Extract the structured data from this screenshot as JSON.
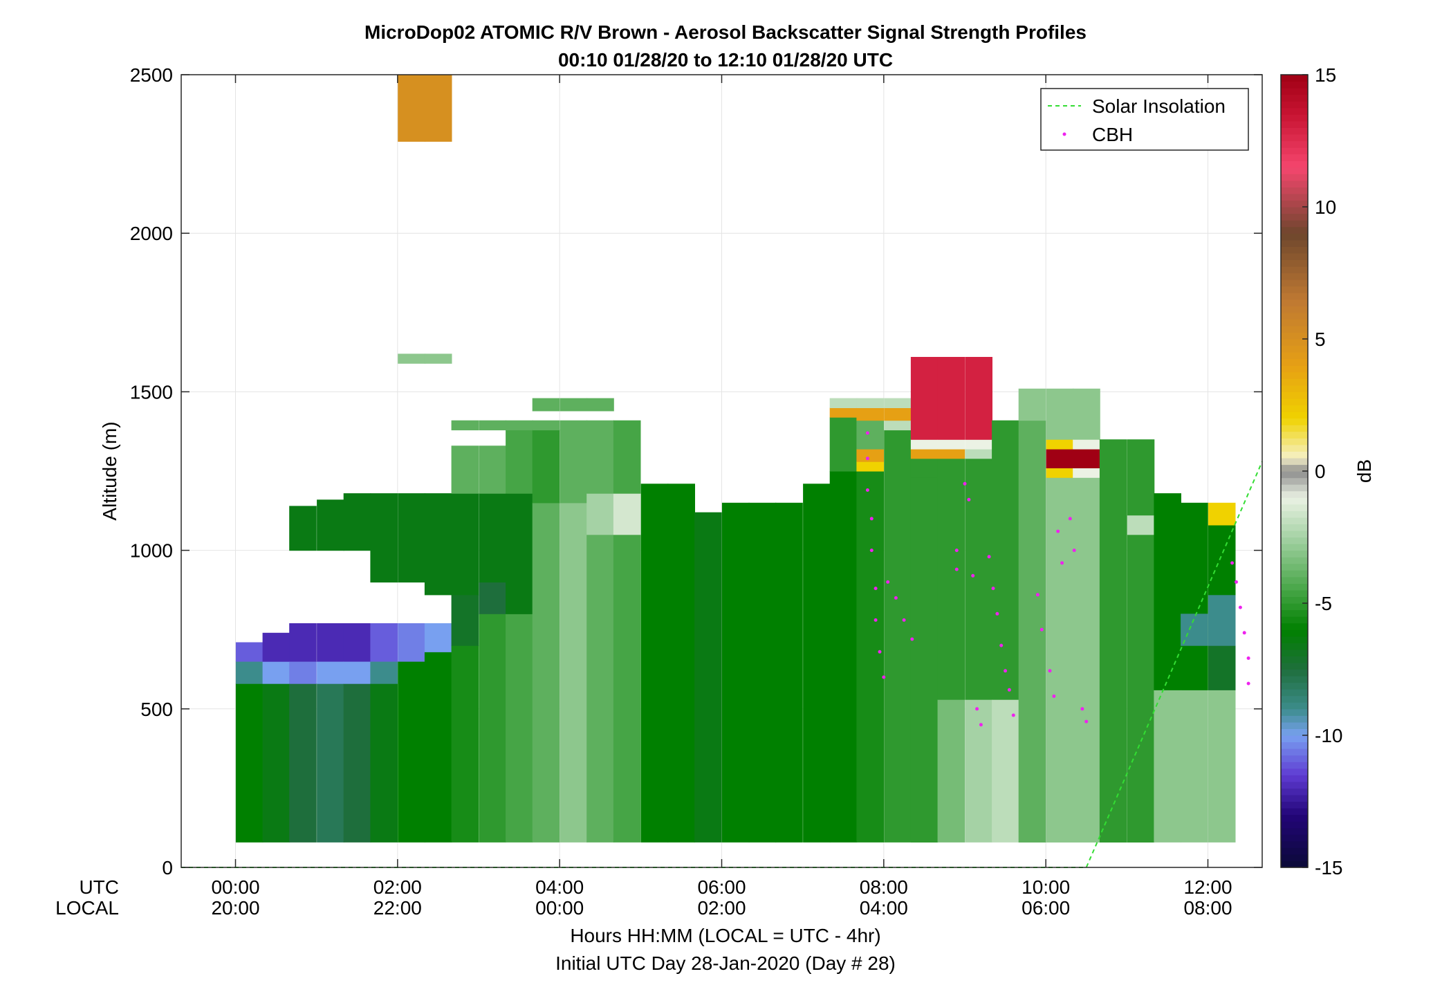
{
  "chart_data": {
    "type": "heatmap",
    "title": "MicroDop02 ATOMIC R/V Brown - Aerosol Backscatter Signal Strength Profiles",
    "subtitle": "00:10 01/28/20 to 12:10 01/28/20  UTC",
    "ylabel": "Altitude (m)",
    "xlabel": "Hours HH:MM  (LOCAL = UTC - 4hr)",
    "xlabel2": "Initial UTC Day 28-Jan-2020 (Day # 28)",
    "x_row_labels": [
      "UTC",
      "LOCAL"
    ],
    "xlim": [
      -0.67,
      12.67
    ],
    "ylim": [
      0,
      2500
    ],
    "grid": true,
    "x_ticks": [
      {
        "utc": "00:00",
        "local": "20:00"
      },
      {
        "utc": "02:00",
        "local": "22:00"
      },
      {
        "utc": "04:00",
        "local": "00:00"
      },
      {
        "utc": "06:00",
        "local": "02:00"
      },
      {
        "utc": "08:00",
        "local": "04:00"
      },
      {
        "utc": "10:00",
        "local": "06:00"
      },
      {
        "utc": "12:00",
        "local": "08:00"
      }
    ],
    "y_ticks": [
      "0",
      "500",
      "1000",
      "1500",
      "2000",
      "2500"
    ],
    "colorbar": {
      "label": "dB",
      "range": [
        -15,
        15
      ],
      "ticks": [
        "-15",
        "-10",
        "-5",
        "0",
        "5",
        "10",
        "15"
      ]
    },
    "legend": {
      "position": "top-right",
      "entries": [
        "Solar Insolation",
        "CBH"
      ]
    },
    "colors": {
      "solar": "#33dd33",
      "cbh": "#ee22ee",
      "grid": "#e4e4e4"
    },
    "solar_insolation": {
      "x": [
        -0.67,
        10.5,
        12.67
      ],
      "y": [
        0,
        0,
        1280
      ]
    },
    "time_step_hr": 0.333,
    "columns": [
      {
        "t": 0.17,
        "segments": [
          [
            80,
            580,
            -6
          ],
          [
            580,
            650,
            -9
          ],
          [
            650,
            710,
            -11
          ]
        ]
      },
      {
        "t": 0.5,
        "segments": [
          [
            80,
            580,
            -6.5
          ],
          [
            580,
            650,
            -10
          ],
          [
            650,
            740,
            -12
          ]
        ]
      },
      {
        "t": 0.83,
        "segments": [
          [
            80,
            580,
            -7.5
          ],
          [
            580,
            650,
            -10.5
          ],
          [
            650,
            770,
            -12
          ],
          [
            1000,
            1140,
            -6.5
          ]
        ]
      },
      {
        "t": 1.17,
        "segments": [
          [
            80,
            580,
            -8
          ],
          [
            580,
            650,
            -10
          ],
          [
            650,
            770,
            -12
          ],
          [
            1000,
            1160,
            -6.5
          ]
        ]
      },
      {
        "t": 1.5,
        "segments": [
          [
            80,
            580,
            -7.5
          ],
          [
            580,
            650,
            -10
          ],
          [
            650,
            770,
            -12
          ],
          [
            1000,
            1180,
            -6.5
          ]
        ]
      },
      {
        "t": 1.83,
        "segments": [
          [
            80,
            580,
            -6.5
          ],
          [
            580,
            650,
            -9
          ],
          [
            650,
            770,
            -11
          ],
          [
            900,
            1180,
            -6.5
          ]
        ]
      },
      {
        "t": 2.17,
        "segments": [
          [
            80,
            650,
            -6
          ],
          [
            650,
            770,
            -10.5
          ],
          [
            900,
            1180,
            -6.5
          ],
          [
            1590,
            1620,
            -3
          ],
          [
            2290,
            2500,
            5
          ]
        ]
      },
      {
        "t": 2.5,
        "segments": [
          [
            80,
            680,
            -6
          ],
          [
            680,
            770,
            -10
          ],
          [
            860,
            1180,
            -6.5
          ],
          [
            1590,
            1620,
            -3
          ],
          [
            2290,
            2500,
            5
          ]
        ]
      },
      {
        "t": 2.83,
        "segments": [
          [
            80,
            700,
            -5.5
          ],
          [
            700,
            860,
            -7
          ],
          [
            860,
            1180,
            -6.5
          ],
          [
            1180,
            1330,
            -4
          ],
          [
            1380,
            1410,
            -4
          ]
        ]
      },
      {
        "t": 3.17,
        "segments": [
          [
            80,
            800,
            -5
          ],
          [
            800,
            900,
            -7.5
          ],
          [
            900,
            1180,
            -6.5
          ],
          [
            1180,
            1330,
            -4
          ],
          [
            1380,
            1410,
            -4
          ]
        ]
      },
      {
        "t": 3.5,
        "segments": [
          [
            80,
            800,
            -4.5
          ],
          [
            800,
            1180,
            -6.5
          ],
          [
            1180,
            1380,
            -4.5
          ],
          [
            1380,
            1410,
            -4
          ]
        ]
      },
      {
        "t": 3.83,
        "segments": [
          [
            80,
            1150,
            -4
          ],
          [
            1150,
            1380,
            -5
          ],
          [
            1380,
            1410,
            -4
          ],
          [
            1440,
            1480,
            -4
          ]
        ]
      },
      {
        "t": 4.17,
        "segments": [
          [
            80,
            1150,
            -3
          ],
          [
            1150,
            1380,
            -4
          ],
          [
            1380,
            1410,
            -4
          ],
          [
            1440,
            1480,
            -4
          ]
        ]
      },
      {
        "t": 4.5,
        "segments": [
          [
            80,
            1050,
            -4
          ],
          [
            1050,
            1180,
            -2.5
          ],
          [
            1180,
            1410,
            -4
          ],
          [
            1440,
            1480,
            -4
          ]
        ]
      },
      {
        "t": 4.83,
        "segments": [
          [
            80,
            1050,
            -4.5
          ],
          [
            1050,
            1180,
            -1.5
          ],
          [
            1180,
            1410,
            -4.5
          ]
        ]
      },
      {
        "t": 5.17,
        "segments": [
          [
            80,
            1210,
            -6
          ]
        ]
      },
      {
        "t": 5.5,
        "segments": [
          [
            80,
            1210,
            -6
          ]
        ]
      },
      {
        "t": 5.83,
        "segments": [
          [
            80,
            1120,
            -6.5
          ]
        ]
      },
      {
        "t": 6.17,
        "segments": [
          [
            80,
            1150,
            -6
          ]
        ]
      },
      {
        "t": 6.5,
        "segments": [
          [
            80,
            1150,
            -6
          ]
        ]
      },
      {
        "t": 6.83,
        "segments": [
          [
            80,
            1150,
            -6
          ]
        ]
      },
      {
        "t": 7.17,
        "segments": [
          [
            80,
            1210,
            -6
          ]
        ]
      },
      {
        "t": 7.5,
        "segments": [
          [
            80,
            1250,
            -6
          ],
          [
            1250,
            1420,
            -5
          ],
          [
            1420,
            1450,
            4
          ],
          [
            1450,
            1480,
            -2
          ]
        ]
      },
      {
        "t": 7.83,
        "segments": [
          [
            80,
            1250,
            -5.5
          ],
          [
            1250,
            1280,
            2
          ],
          [
            1280,
            1320,
            4
          ],
          [
            1320,
            1410,
            -4
          ],
          [
            1410,
            1450,
            4
          ],
          [
            1450,
            1480,
            -2
          ]
        ]
      },
      {
        "t": 8.17,
        "segments": [
          [
            80,
            1380,
            -5
          ],
          [
            1380,
            1410,
            -2
          ],
          [
            1410,
            1450,
            4
          ],
          [
            1450,
            1480,
            -2
          ]
        ]
      },
      {
        "t": 8.5,
        "segments": [
          [
            80,
            1230,
            -5
          ],
          [
            1230,
            1290,
            -5
          ],
          [
            1290,
            1320,
            4
          ],
          [
            1320,
            1350,
            -1
          ],
          [
            1350,
            1610,
            13
          ]
        ]
      },
      {
        "t": 8.83,
        "segments": [
          [
            80,
            530,
            -3.5
          ],
          [
            530,
            1290,
            -5
          ],
          [
            1290,
            1320,
            4
          ],
          [
            1320,
            1350,
            -1
          ],
          [
            1350,
            1610,
            13
          ]
        ]
      },
      {
        "t": 9.17,
        "segments": [
          [
            80,
            530,
            -2.5
          ],
          [
            530,
            1290,
            -5
          ],
          [
            1290,
            1320,
            -2
          ],
          [
            1320,
            1350,
            -1
          ],
          [
            1350,
            1610,
            13
          ]
        ]
      },
      {
        "t": 9.5,
        "segments": [
          [
            80,
            530,
            -2
          ],
          [
            530,
            1410,
            -5
          ]
        ]
      },
      {
        "t": 9.83,
        "segments": [
          [
            80,
            1410,
            -4
          ],
          [
            1410,
            1510,
            -3
          ]
        ]
      },
      {
        "t": 10.17,
        "segments": [
          [
            80,
            1230,
            -3
          ],
          [
            1230,
            1260,
            2
          ],
          [
            1260,
            1320,
            15
          ],
          [
            1320,
            1350,
            2
          ],
          [
            1350,
            1510,
            -3
          ]
        ]
      },
      {
        "t": 10.5,
        "segments": [
          [
            80,
            1230,
            -3
          ],
          [
            1230,
            1260,
            -1
          ],
          [
            1260,
            1320,
            15
          ],
          [
            1320,
            1350,
            -1
          ],
          [
            1350,
            1510,
            -3
          ]
        ]
      },
      {
        "t": 10.83,
        "segments": [
          [
            80,
            1350,
            -5
          ]
        ]
      },
      {
        "t": 11.17,
        "segments": [
          [
            80,
            1350,
            -5
          ],
          [
            1050,
            1110,
            -2
          ]
        ]
      },
      {
        "t": 11.5,
        "segments": [
          [
            80,
            560,
            -3
          ],
          [
            560,
            1180,
            -6
          ]
        ]
      },
      {
        "t": 11.83,
        "segments": [
          [
            80,
            560,
            -3
          ],
          [
            560,
            1150,
            -6
          ],
          [
            700,
            800,
            -9
          ]
        ]
      },
      {
        "t": 12.17,
        "segments": [
          [
            80,
            560,
            -3
          ],
          [
            560,
            700,
            -7
          ],
          [
            700,
            860,
            -9
          ],
          [
            860,
            1080,
            -6
          ],
          [
            1080,
            1150,
            2
          ]
        ]
      }
    ],
    "cbh": [
      [
        7.8,
        1370
      ],
      [
        7.8,
        1290
      ],
      [
        7.8,
        1190
      ],
      [
        7.85,
        1100
      ],
      [
        7.85,
        1000
      ],
      [
        7.9,
        880
      ],
      [
        7.9,
        780
      ],
      [
        7.95,
        680
      ],
      [
        8.0,
        600
      ],
      [
        8.05,
        900
      ],
      [
        8.15,
        850
      ],
      [
        8.25,
        780
      ],
      [
        8.35,
        720
      ],
      [
        8.9,
        1000
      ],
      [
        8.9,
        940
      ],
      [
        9.0,
        1210
      ],
      [
        9.05,
        1160
      ],
      [
        9.1,
        920
      ],
      [
        9.15,
        500
      ],
      [
        9.2,
        450
      ],
      [
        9.3,
        980
      ],
      [
        9.35,
        880
      ],
      [
        9.4,
        800
      ],
      [
        9.45,
        700
      ],
      [
        9.5,
        620
      ],
      [
        9.55,
        560
      ],
      [
        9.6,
        480
      ],
      [
        9.9,
        860
      ],
      [
        9.95,
        750
      ],
      [
        10.05,
        620
      ],
      [
        10.1,
        540
      ],
      [
        10.15,
        1060
      ],
      [
        10.2,
        960
      ],
      [
        10.3,
        1100
      ],
      [
        10.35,
        1000
      ],
      [
        10.45,
        500
      ],
      [
        10.5,
        460
      ],
      [
        12.3,
        960
      ],
      [
        12.35,
        900
      ],
      [
        12.4,
        820
      ],
      [
        12.45,
        740
      ],
      [
        12.5,
        660
      ],
      [
        12.5,
        580
      ]
    ]
  }
}
